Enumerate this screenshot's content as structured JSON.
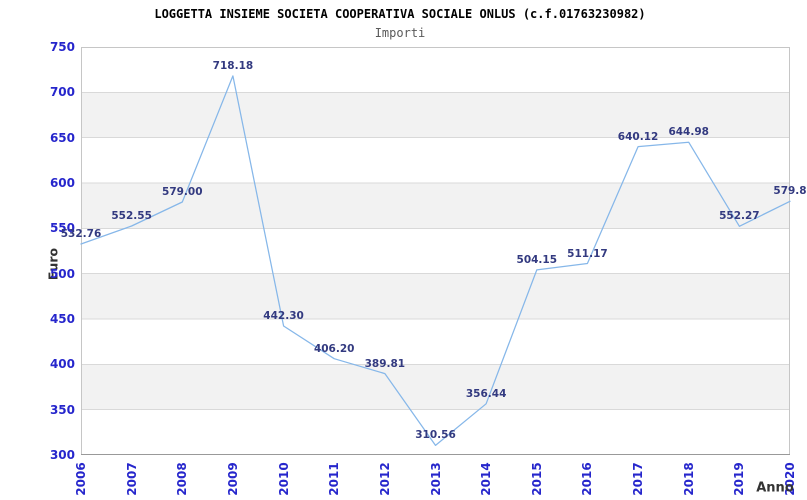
{
  "chart_data": {
    "type": "line",
    "title": "LOGGETTA INSIEME SOCIETA COOPERATIVA SOCIALE ONLUS (c.f.01763230982)",
    "subtitle": "Importi",
    "xlabel": "Anno",
    "ylabel": "Euro",
    "categories": [
      "2006",
      "2007",
      "2008",
      "2009",
      "2010",
      "2011",
      "2012",
      "2013",
      "2014",
      "2015",
      "2016",
      "2017",
      "2018",
      "2019",
      "2020"
    ],
    "values": [
      532.76,
      552.55,
      579.0,
      718.18,
      442.3,
      406.2,
      389.81,
      310.56,
      356.44,
      504.15,
      511.17,
      640.12,
      644.98,
      552.27,
      579.8
    ],
    "point_labels": [
      "532.76",
      "552.55",
      "579.00",
      "718.18",
      "442.30",
      "406.20",
      "389.81",
      "310.56",
      "356.44",
      "504.15",
      "511.17",
      "640.12",
      "644.98",
      "552.27",
      "579.8"
    ],
    "ylim": [
      300,
      750
    ],
    "ytick_step": 50,
    "yticks": [
      "300",
      "350",
      "400",
      "450",
      "500",
      "550",
      "600",
      "650",
      "700",
      "750"
    ],
    "grid": true,
    "alternating_bands": true,
    "legend": "none",
    "colors": {
      "line": "#86b7e9",
      "tick_labels": "#2626cc",
      "point_labels": "#333a80",
      "band_fill": "#f2f2f2",
      "gridline": "#d9d9d9",
      "plot_border": "#c6c6c6",
      "axis_line": "#999999",
      "title": "#000000",
      "subtitle": "#5a5a5a",
      "axis_titles": "#333333",
      "background": "#ffffff"
    }
  }
}
